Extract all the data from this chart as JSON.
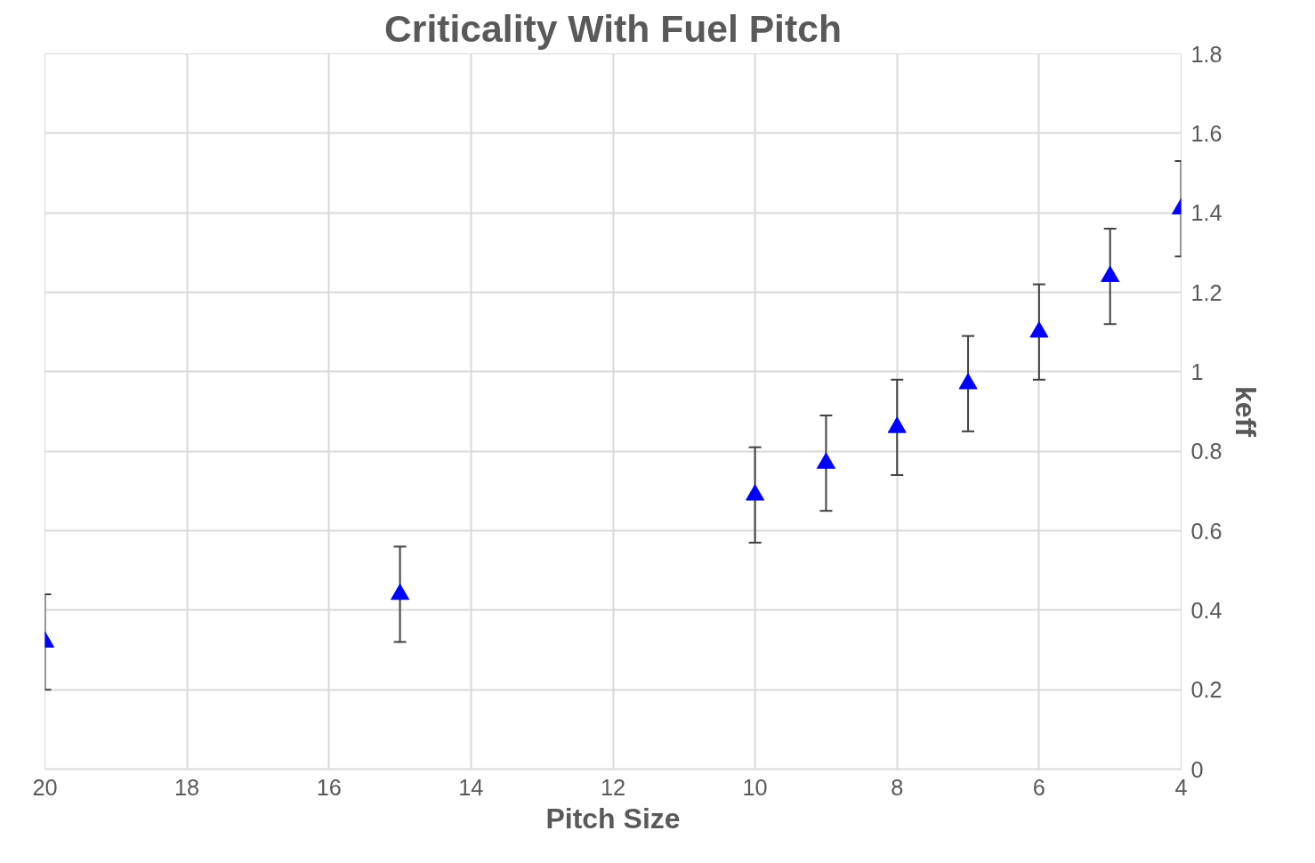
{
  "chart_data": {
    "type": "scatter",
    "title": "Criticality With Fuel Pitch",
    "xlabel": "Pitch Size",
    "ylabel": "keff",
    "x": [
      20,
      15,
      10,
      9,
      8,
      7,
      6,
      5,
      4
    ],
    "series": [
      {
        "color": "#0000ff",
        "values": [
          0.32,
          0.44,
          0.69,
          0.77,
          0.86,
          0.97,
          1.1,
          1.24,
          1.41
        ],
        "errors": [
          0.12,
          0.12,
          0.12,
          0.12,
          0.12,
          0.12,
          0.12,
          0.12,
          0.12
        ]
      }
    ],
    "xlim": [
      20,
      4
    ],
    "xticks": [
      20,
      18,
      16,
      14,
      12,
      10,
      8,
      6,
      4
    ],
    "ylim": [
      0,
      1.8
    ],
    "yticks": [
      0,
      {
        "value": 0.2,
        "label": "0.2"
      },
      {
        "value": 0.4,
        "label": "0.4"
      },
      {
        "value": 0.6,
        "label": "0.6"
      },
      {
        "value": 0.8,
        "label": "0.8"
      },
      1,
      {
        "value": 1.2,
        "label": "1.2"
      },
      {
        "value": 1.4,
        "label": "1.4"
      },
      {
        "value": 1.6,
        "label": "1.6"
      },
      {
        "value": 1.8,
        "label": "1.8"
      }
    ],
    "grid": true,
    "marker": "triangle"
  }
}
